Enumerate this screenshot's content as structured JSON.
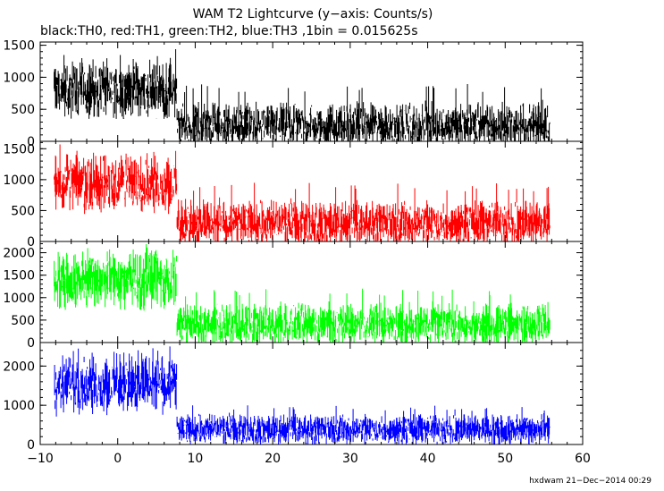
{
  "title": "WAM T2 Lightcurve (y−axis: Counts/s)",
  "subtitle": "black:TH0, red:TH1, green:TH2, blue:TH3 ,1bin = 0.015625s",
  "footer": "hxdwam 21−Dec−2014 00:29",
  "chart_data": {
    "type": "line",
    "x_range": [
      -10,
      60
    ],
    "x_ticks": [
      -10,
      0,
      10,
      20,
      30,
      40,
      50,
      60
    ],
    "x_tick_labels": [
      "−10",
      "0",
      "10",
      "20",
      "30",
      "40",
      "50",
      "60"
    ],
    "data_x_range": [
      -8.2,
      55.8
    ],
    "step_time": 7.6,
    "panels": [
      {
        "name": "TH0",
        "color": "#000000",
        "ylim": [
          0,
          1550
        ],
        "y_ticks": [
          0,
          500,
          1000,
          1500
        ],
        "y_tick_labels": [
          "0",
          "500",
          "1000",
          "1500"
        ],
        "before_step": {
          "mean": 800,
          "min": 350,
          "max": 1500
        },
        "after_step": {
          "mean": 250,
          "min": 0,
          "max": 900
        }
      },
      {
        "name": "TH1",
        "color": "#ff0000",
        "ylim": [
          0,
          1620
        ],
        "y_ticks": [
          0,
          500,
          1000,
          1500
        ],
        "y_tick_labels": [
          "0",
          "500",
          "1000",
          "1500"
        ],
        "before_step": {
          "mean": 950,
          "min": 400,
          "max": 1600
        },
        "after_step": {
          "mean": 290,
          "min": 0,
          "max": 950
        }
      },
      {
        "name": "TH2",
        "color": "#00ff00",
        "ylim": [
          0,
          2250
        ],
        "y_ticks": [
          0,
          500,
          1000,
          1500,
          2000
        ],
        "y_tick_labels": [
          "0",
          "500",
          "1000",
          "1500",
          "2000"
        ],
        "before_step": {
          "mean": 1400,
          "min": 600,
          "max": 2200
        },
        "after_step": {
          "mean": 400,
          "min": 0,
          "max": 1200
        }
      },
      {
        "name": "TH3",
        "color": "#0000ff",
        "ylim": [
          0,
          2600
        ],
        "y_ticks": [
          0,
          1000,
          2000
        ],
        "y_tick_labels": [
          "0",
          "1000",
          "2000"
        ],
        "before_step": {
          "mean": 1550,
          "min": 700,
          "max": 2600
        },
        "after_step": {
          "mean": 380,
          "min": 0,
          "max": 1000
        }
      }
    ]
  }
}
